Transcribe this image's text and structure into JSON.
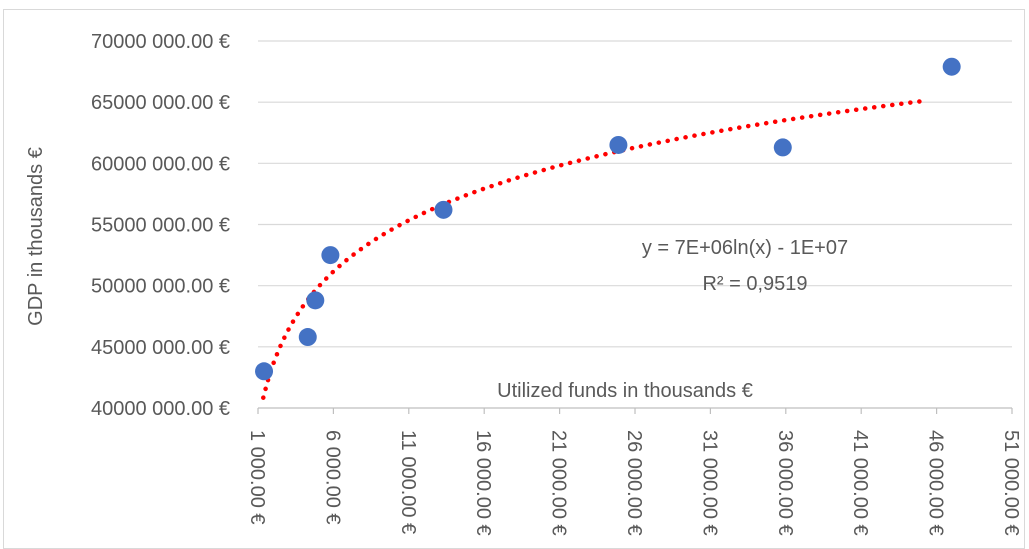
{
  "chart_data": {
    "type": "scatter",
    "title": "",
    "xlabel": "Utilized funds in thousands €",
    "ylabel": "GDP in thousands €",
    "xlim": [
      1000,
      51000
    ],
    "ylim": [
      40000000,
      70000000
    ],
    "x_ticks": [
      1000,
      6000,
      11000,
      16000,
      21000,
      26000,
      31000,
      36000,
      41000,
      46000,
      51000
    ],
    "x_tick_labels": [
      "1 000.00 €",
      "6 000.00 €",
      "11 000.00 €",
      "16 000.00 €",
      "21 000.00 €",
      "26 000.00 €",
      "31 000.00 €",
      "36 000.00 €",
      "41 000.00 €",
      "46 000.00 €",
      "51 000.00 €"
    ],
    "y_ticks": [
      40000000,
      45000000,
      50000000,
      55000000,
      60000000,
      65000000,
      70000000
    ],
    "y_tick_labels": [
      "40000 000.00 €",
      "45000 000.00 €",
      "50000 000.00 €",
      "55000 000.00 €",
      "60000 000.00 €",
      "65000 000.00 €",
      "70000 000.00 €"
    ],
    "grid": "horizontal",
    "series": [
      {
        "color": "#4472c4",
        "points": [
          {
            "x": 1400,
            "y": 43000000
          },
          {
            "x": 4300,
            "y": 45800000
          },
          {
            "x": 4800,
            "y": 48800000
          },
          {
            "x": 5800,
            "y": 52500000
          },
          {
            "x": 13300,
            "y": 56200000
          },
          {
            "x": 24900,
            "y": 61500000
          },
          {
            "x": 35800,
            "y": 61300000
          },
          {
            "x": 47000,
            "y": 67900000
          }
        ]
      }
    ],
    "trendline": {
      "type": "logarithmic",
      "color": "#ff0000",
      "x_range": [
        1350,
        45400
      ],
      "equation": "y = 7E+06ln(x) - 1E+07",
      "r_squared": "R² = 0,9519"
    }
  }
}
